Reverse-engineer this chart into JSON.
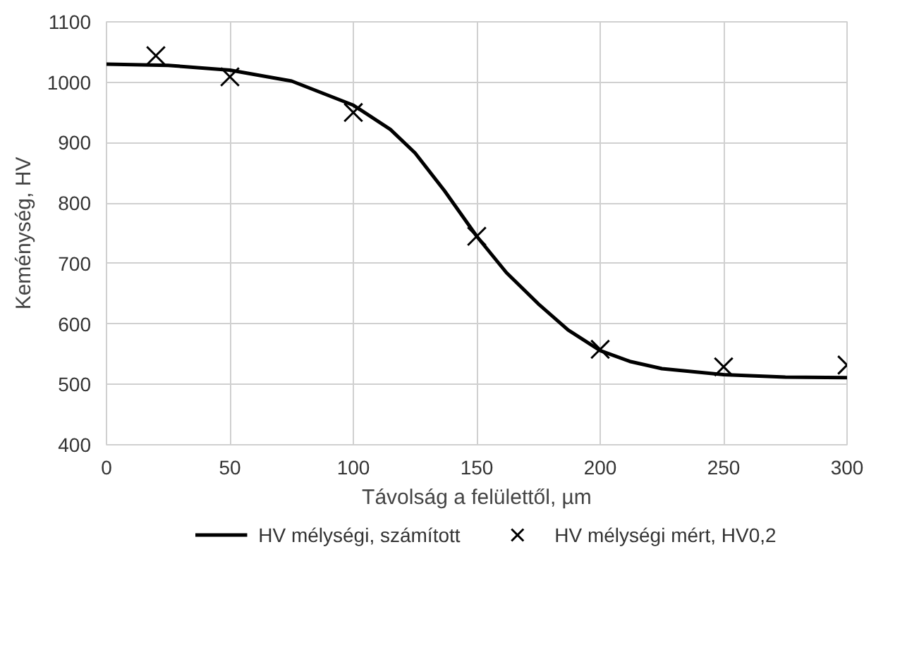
{
  "chart_data": {
    "type": "line",
    "xlabel": "Távolság a felülettől, µm",
    "ylabel": "Keménység, HV",
    "xlim": [
      0,
      300
    ],
    "xticks": [
      0,
      50,
      100,
      150,
      200,
      250,
      300
    ],
    "ylim": [
      400,
      1100
    ],
    "yticks": [
      400,
      500,
      600,
      700,
      800,
      900,
      1000,
      1100
    ],
    "grid": true,
    "legend": "bottom",
    "series": [
      {
        "name": "HV mélységi, számított",
        "type": "line",
        "color": "#000000",
        "marker": "none",
        "line_style": "solid",
        "x": [
          0,
          25,
          50,
          75,
          100,
          115,
          125,
          137,
          150,
          162,
          175,
          187,
          200,
          212,
          225,
          250,
          275,
          300
        ],
        "values": [
          1030,
          1028,
          1020,
          1002,
          962,
          922,
          883,
          820,
          745,
          685,
          633,
          590,
          556,
          538,
          526,
          516,
          512,
          511
        ]
      },
      {
        "name": "HV mélységi mért, HV0,2",
        "type": "scatter",
        "color": "#000000",
        "marker": "cross",
        "x": [
          20,
          50,
          100,
          150,
          200,
          250,
          300
        ],
        "values": [
          1044,
          1009,
          950,
          745,
          558,
          529,
          532
        ]
      }
    ]
  }
}
